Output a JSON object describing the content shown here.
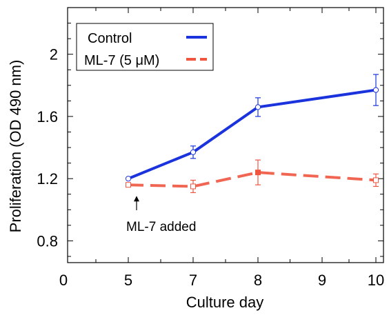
{
  "chart_data": {
    "type": "line",
    "title": "",
    "xlabel": "Culture day",
    "ylabel": "Proliferation (OD 490 nm)",
    "x_tick_labels": [
      "0",
      "5",
      "7",
      "8",
      "9",
      "10"
    ],
    "y_tick_labels": [
      "0.8",
      "1.2",
      "1.6",
      "2"
    ],
    "ylim": [
      0.66,
      2.3
    ],
    "grid": false,
    "legend_position": "top-left",
    "series": [
      {
        "name": "Control",
        "color": "#1a33dd",
        "line_style": "solid",
        "marker": "open-circle",
        "x": [
          "5",
          "7",
          "8",
          "10"
        ],
        "y": [
          1.2,
          1.37,
          1.66,
          1.77
        ],
        "error": [
          0.0,
          0.04,
          0.06,
          0.1
        ]
      },
      {
        "name": "ML-7 (5 μM)",
        "color": "#f05540",
        "line_style": "dashed",
        "marker": "square",
        "x": [
          "5",
          "7",
          "8",
          "10"
        ],
        "y": [
          1.16,
          1.15,
          1.24,
          1.19
        ],
        "error": [
          0.0,
          0.04,
          0.08,
          0.04
        ]
      }
    ],
    "annotations": [
      {
        "text": "ML-7 added",
        "x": "5",
        "arrow": true
      }
    ]
  }
}
